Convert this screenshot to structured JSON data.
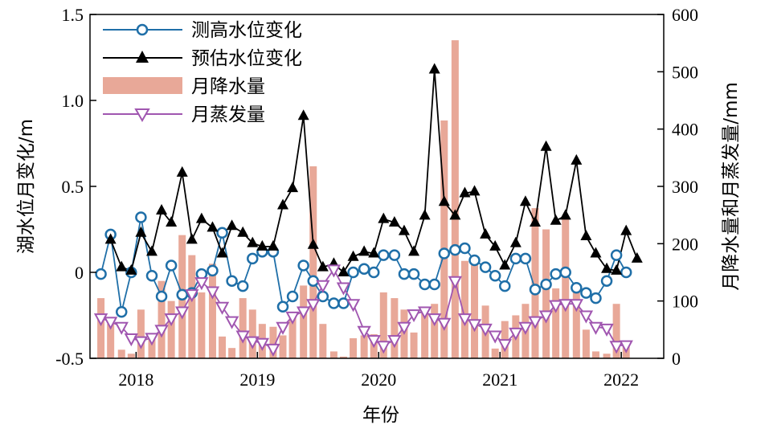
{
  "chart_data": {
    "type": "line",
    "title": "",
    "xlabel": "年份",
    "ylabel_left": "湖水位月变化/m",
    "ylabel_right": "月降水量和月蒸发量/mm",
    "x_ticks": [
      "2018",
      "2019",
      "2020",
      "2021",
      "2022"
    ],
    "x_tick_values": [
      2018,
      2019,
      2020,
      2021,
      2022
    ],
    "xlim": [
      2017.62,
      2022.35
    ],
    "ylim_left": [
      -0.5,
      1.5
    ],
    "y_ticks_left": [
      "-0.5",
      "0",
      "0.5",
      "1.0",
      "1.5"
    ],
    "y_tick_values_left": [
      -0.5,
      0,
      0.5,
      1.0,
      1.5
    ],
    "ylim_right": [
      0,
      600
    ],
    "y_ticks_right": [
      "0",
      "100",
      "200",
      "300",
      "400",
      "500",
      "600"
    ],
    "y_tick_values_right": [
      0,
      100,
      200,
      300,
      400,
      500,
      600
    ],
    "grid": false,
    "legend_position": "top-left",
    "colors": {
      "measured": "#1f6fa8",
      "estimated": "#000000",
      "precipitation": "#e8a898",
      "evaporation": "#a056b0"
    },
    "series": [
      {
        "name": "测高水位变化",
        "axis": "left",
        "marker": "circle",
        "x": [
          2017.71,
          2017.79,
          2017.88,
          2017.96,
          2018.04,
          2018.13,
          2018.21,
          2018.29,
          2018.38,
          2018.46,
          2018.54,
          2018.63,
          2018.71,
          2018.79,
          2018.88,
          2018.96,
          2019.04,
          2019.13,
          2019.21,
          2019.29,
          2019.38,
          2019.46,
          2019.54,
          2019.63,
          2019.71,
          2019.79,
          2019.88,
          2019.96,
          2020.04,
          2020.13,
          2020.21,
          2020.29,
          2020.38,
          2020.46,
          2020.54,
          2020.63,
          2020.71,
          2020.79,
          2020.88,
          2020.96,
          2021.04,
          2021.13,
          2021.21,
          2021.29,
          2021.38,
          2021.46,
          2021.54,
          2021.63,
          2021.71,
          2021.79,
          2021.88,
          2021.96,
          2022.04,
          2022.13
        ],
        "y": [
          -0.01,
          0.22,
          -0.23,
          0.0,
          0.32,
          -0.02,
          -0.14,
          0.04,
          -0.13,
          -0.12,
          -0.01,
          0.01,
          0.23,
          -0.05,
          -0.08,
          0.08,
          0.12,
          0.12,
          -0.2,
          -0.14,
          0.04,
          -0.05,
          -0.14,
          -0.18,
          -0.18,
          0.0,
          0.02,
          0.0,
          0.1,
          0.1,
          -0.01,
          -0.01,
          -0.07,
          -0.07,
          0.11,
          0.13,
          0.14,
          0.07,
          0.03,
          -0.02,
          -0.08,
          0.08,
          0.08,
          -0.1,
          -0.07,
          -0.01,
          0.0,
          -0.09,
          -0.12,
          -0.15,
          -0.05,
          0.1,
          0.0,
          null
        ]
      },
      {
        "name": "预估水位变化",
        "axis": "left",
        "marker": "triangle-up",
        "x": [
          2017.79,
          2017.88,
          2017.96,
          2018.04,
          2018.13,
          2018.21,
          2018.29,
          2018.38,
          2018.46,
          2018.54,
          2018.63,
          2018.71,
          2018.79,
          2018.88,
          2018.96,
          2019.04,
          2019.13,
          2019.21,
          2019.29,
          2019.38,
          2019.46,
          2019.54,
          2019.63,
          2019.71,
          2019.79,
          2019.88,
          2019.96,
          2020.04,
          2020.13,
          2020.21,
          2020.29,
          2020.38,
          2020.46,
          2020.54,
          2020.63,
          2020.71,
          2020.79,
          2020.88,
          2020.96,
          2021.04,
          2021.13,
          2021.21,
          2021.29,
          2021.38,
          2021.46,
          2021.54,
          2021.63,
          2021.71,
          2021.79,
          2021.88,
          2021.96,
          2022.04,
          2022.13
        ],
        "y": [
          0.19,
          0.03,
          0.01,
          0.23,
          0.12,
          0.36,
          0.29,
          0.58,
          0.19,
          0.31,
          0.26,
          0.11,
          0.27,
          0.23,
          0.17,
          0.15,
          0.15,
          0.39,
          0.49,
          0.91,
          0.16,
          0.03,
          0.05,
          0.0,
          0.09,
          0.12,
          0.11,
          0.31,
          0.29,
          0.24,
          0.12,
          0.33,
          1.18,
          0.41,
          0.33,
          0.46,
          0.47,
          0.22,
          0.15,
          0.04,
          0.17,
          0.41,
          0.29,
          0.73,
          0.3,
          0.33,
          0.65,
          0.21,
          0.11,
          0.02,
          0.01,
          0.24,
          0.08
        ]
      },
      {
        "name": "月降水量",
        "axis": "right",
        "marker": "bar",
        "x": [
          2017.71,
          2017.79,
          2017.88,
          2017.96,
          2018.04,
          2018.13,
          2018.21,
          2018.29,
          2018.38,
          2018.46,
          2018.54,
          2018.63,
          2018.71,
          2018.79,
          2018.88,
          2018.96,
          2019.04,
          2019.13,
          2019.21,
          2019.29,
          2019.38,
          2019.46,
          2019.54,
          2019.63,
          2019.71,
          2019.79,
          2019.88,
          2019.96,
          2020.04,
          2020.13,
          2020.21,
          2020.29,
          2020.38,
          2020.46,
          2020.54,
          2020.63,
          2020.71,
          2020.79,
          2020.88,
          2020.96,
          2021.04,
          2021.13,
          2021.21,
          2021.29,
          2021.38,
          2021.46,
          2021.54,
          2021.63,
          2021.71,
          2021.79,
          2021.88,
          2021.96,
          2022.04
        ],
        "y": [
          105,
          60,
          15,
          8,
          85,
          35,
          135,
          100,
          215,
          180,
          115,
          165,
          38,
          18,
          105,
          85,
          60,
          55,
          40,
          75,
          127,
          335,
          60,
          12,
          3,
          35,
          40,
          42,
          115,
          105,
          85,
          45,
          90,
          95,
          415,
          555,
          170,
          168,
          92,
          17,
          65,
          75,
          95,
          262,
          225,
          122,
          245,
          122,
          50,
          12,
          8,
          95,
          30
        ]
      },
      {
        "name": "月蒸发量",
        "axis": "right",
        "marker": "triangle-down",
        "x": [
          2017.71,
          2017.79,
          2017.88,
          2017.96,
          2018.04,
          2018.13,
          2018.21,
          2018.29,
          2018.38,
          2018.46,
          2018.54,
          2018.63,
          2018.71,
          2018.79,
          2018.88,
          2018.96,
          2019.04,
          2019.13,
          2019.21,
          2019.29,
          2019.38,
          2019.46,
          2019.54,
          2019.63,
          2019.71,
          2019.79,
          2019.88,
          2019.96,
          2020.04,
          2020.13,
          2020.21,
          2020.29,
          2020.38,
          2020.46,
          2020.54,
          2020.63,
          2020.71,
          2020.79,
          2020.88,
          2020.96,
          2021.04,
          2021.13,
          2021.21,
          2021.29,
          2021.38,
          2021.46,
          2021.54,
          2021.63,
          2021.71,
          2021.79,
          2021.88,
          2021.96,
          2022.04,
          2022.13
        ],
        "y": [
          70,
          64,
          55,
          35,
          30,
          36,
          50,
          70,
          82,
          112,
          133,
          117,
          90,
          65,
          40,
          30,
          27,
          17,
          55,
          73,
          82,
          95,
          128,
          155,
          124,
          95,
          48,
          32,
          22,
          32,
          55,
          77,
          82,
          70,
          62,
          135,
          70,
          60,
          52,
          40,
          25,
          45,
          55,
          65,
          75,
          93,
          95,
          95,
          75,
          55,
          52,
          22,
          23,
          null
        ]
      }
    ]
  }
}
